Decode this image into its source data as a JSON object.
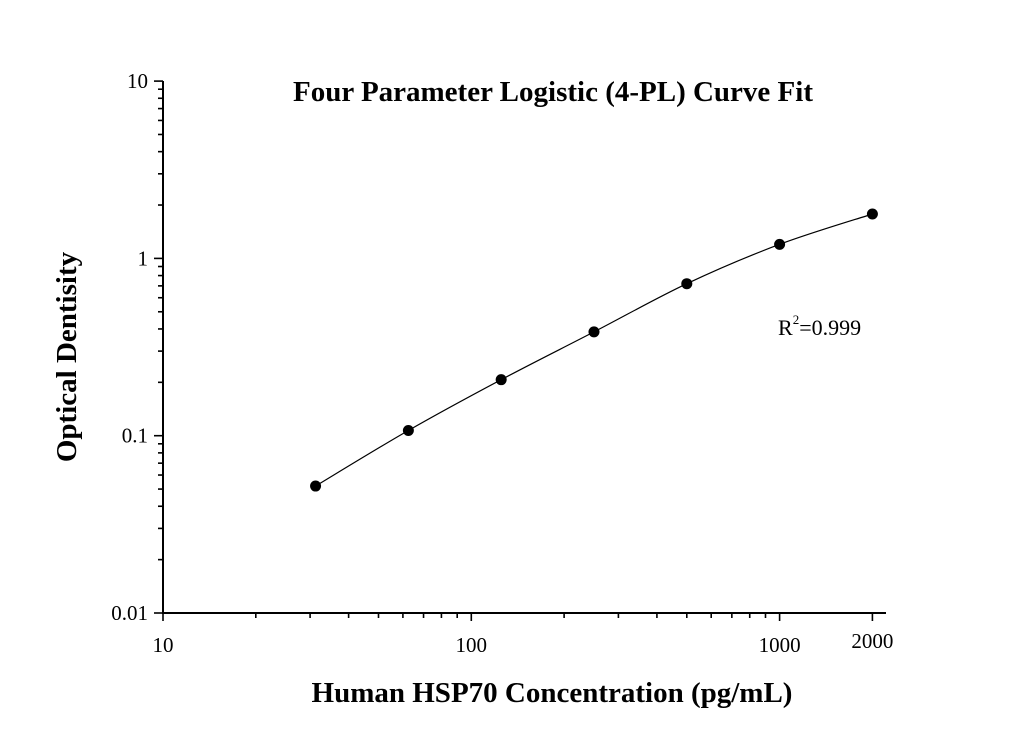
{
  "chart_data": {
    "type": "scatter",
    "title": "Four Parameter Logistic (4-PL) Curve Fit",
    "xlabel": "Human HSP70 Concentration (pg/mL)",
    "ylabel": "Optical Dentisity",
    "xscale": "log",
    "yscale": "log",
    "xlim": [
      10,
      2300
    ],
    "ylim": [
      0.01,
      10
    ],
    "x_ticks": [
      10,
      100,
      1000,
      2000
    ],
    "x_tick_labels": [
      "10",
      "100",
      "1000",
      "2000"
    ],
    "y_ticks": [
      0.01,
      0.1,
      1,
      10
    ],
    "y_tick_labels": [
      "0.01",
      "0.1",
      "1",
      "10"
    ],
    "grid": false,
    "legend": null,
    "series": [
      {
        "name": "Standards",
        "marker": "filled-circle",
        "color": "#000000",
        "x": [
          31.25,
          62.5,
          125,
          250,
          500,
          1000,
          2000
        ],
        "y": [
          0.052,
          0.107,
          0.207,
          0.385,
          0.72,
          1.2,
          1.78
        ]
      },
      {
        "name": "4-PL fit",
        "line": "solid",
        "color": "#000000"
      }
    ],
    "annotations": [
      {
        "text_main": "R",
        "superscript": "2",
        "text_rest": "=0.999",
        "x": 1000,
        "y": 0.39
      }
    ]
  }
}
